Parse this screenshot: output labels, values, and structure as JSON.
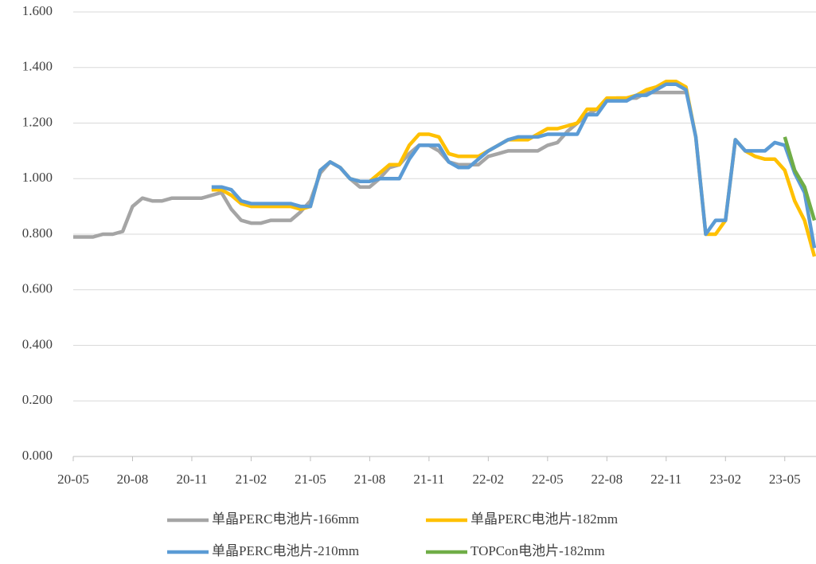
{
  "chart_data": {
    "type": "line",
    "categories": [
      "20-05",
      null,
      null,
      null,
      null,
      null,
      "20-08",
      null,
      null,
      null,
      null,
      null,
      "20-11",
      null,
      null,
      null,
      null,
      null,
      "21-02",
      null,
      null,
      null,
      null,
      null,
      "21-05",
      null,
      null,
      null,
      null,
      null,
      "21-08",
      null,
      null,
      null,
      null,
      null,
      "21-11",
      null,
      null,
      null,
      null,
      null,
      "22-02",
      null,
      null,
      null,
      null,
      null,
      "22-05",
      null,
      null,
      null,
      null,
      null,
      "22-08",
      null,
      null,
      null,
      null,
      null,
      "22-11",
      null,
      null,
      null,
      null,
      null,
      "23-02",
      null,
      null,
      null,
      null,
      null,
      "23-05",
      null,
      null,
      null
    ],
    "series": [
      {
        "name": "单晶PERC电池片-166mm",
        "color": "#a5a5a5",
        "values": [
          0.79,
          0.79,
          0.79,
          0.8,
          0.8,
          0.81,
          0.9,
          0.93,
          0.92,
          0.92,
          0.93,
          0.93,
          0.93,
          0.93,
          0.94,
          0.95,
          0.89,
          0.85,
          0.84,
          0.84,
          0.85,
          0.85,
          0.85,
          0.88,
          0.92,
          1.02,
          1.06,
          1.04,
          1.0,
          0.97,
          0.97,
          1.0,
          1.04,
          1.05,
          1.09,
          1.12,
          1.12,
          1.1,
          1.06,
          1.05,
          1.05,
          1.05,
          1.08,
          1.09,
          1.1,
          1.1,
          1.1,
          1.1,
          1.12,
          1.13,
          1.17,
          1.2,
          1.23,
          1.25,
          1.28,
          1.29,
          1.29,
          1.29,
          1.31,
          1.31,
          1.31,
          1.31,
          1.31,
          null,
          null,
          null,
          null,
          null,
          null,
          null,
          null,
          null,
          null,
          null,
          null,
          null
        ]
      },
      {
        "name": "单晶PERC电池片-182mm",
        "color": "#ffc000",
        "values": [
          null,
          null,
          null,
          null,
          null,
          null,
          null,
          null,
          null,
          null,
          null,
          null,
          null,
          null,
          0.96,
          0.96,
          0.94,
          0.91,
          0.9,
          0.9,
          0.9,
          0.9,
          0.9,
          0.89,
          0.9,
          1.03,
          1.06,
          1.04,
          1.0,
          0.99,
          0.99,
          1.02,
          1.05,
          1.05,
          1.12,
          1.16,
          1.16,
          1.15,
          1.09,
          1.08,
          1.08,
          1.08,
          1.1,
          1.12,
          1.14,
          1.14,
          1.14,
          1.16,
          1.18,
          1.18,
          1.19,
          1.2,
          1.25,
          1.25,
          1.29,
          1.29,
          1.29,
          1.3,
          1.32,
          1.33,
          1.35,
          1.35,
          1.33,
          1.15,
          0.8,
          0.8,
          0.85,
          1.14,
          1.1,
          1.08,
          1.07,
          1.07,
          1.03,
          0.92,
          0.85,
          0.72
        ]
      },
      {
        "name": "单晶PERC电池片-210mm",
        "color": "#5b9bd5",
        "values": [
          null,
          null,
          null,
          null,
          null,
          null,
          null,
          null,
          null,
          null,
          null,
          null,
          null,
          null,
          0.97,
          0.97,
          0.96,
          0.92,
          0.91,
          0.91,
          0.91,
          0.91,
          0.91,
          0.9,
          0.9,
          1.03,
          1.06,
          1.04,
          1.0,
          0.99,
          0.99,
          1.0,
          1.0,
          1.0,
          1.07,
          1.12,
          1.12,
          1.12,
          1.06,
          1.04,
          1.04,
          1.07,
          1.1,
          1.12,
          1.14,
          1.15,
          1.15,
          1.15,
          1.16,
          1.16,
          1.16,
          1.16,
          1.23,
          1.23,
          1.28,
          1.28,
          1.28,
          1.3,
          1.3,
          1.32,
          1.34,
          1.34,
          1.32,
          1.15,
          0.8,
          0.85,
          0.85,
          1.14,
          1.1,
          1.1,
          1.1,
          1.13,
          1.12,
          1.02,
          0.95,
          0.75
        ]
      },
      {
        "name": "TOPCon电池片-182mm",
        "color": "#70ad47",
        "values": [
          null,
          null,
          null,
          null,
          null,
          null,
          null,
          null,
          null,
          null,
          null,
          null,
          null,
          null,
          null,
          null,
          null,
          null,
          null,
          null,
          null,
          null,
          null,
          null,
          null,
          null,
          null,
          null,
          null,
          null,
          null,
          null,
          null,
          null,
          null,
          null,
          null,
          null,
          null,
          null,
          null,
          null,
          null,
          null,
          null,
          null,
          null,
          null,
          null,
          null,
          null,
          null,
          null,
          null,
          null,
          null,
          null,
          null,
          null,
          null,
          null,
          null,
          null,
          null,
          null,
          null,
          null,
          null,
          null,
          null,
          null,
          null,
          1.15,
          1.03,
          0.97,
          0.85
        ]
      }
    ],
    "ylim": [
      0,
      1.6
    ],
    "yticks": [
      {
        "value": 0,
        "label": "0.000"
      },
      {
        "value": 0.2,
        "label": "0.200"
      },
      {
        "value": 0.4,
        "label": "0.400"
      },
      {
        "value": 0.6,
        "label": "0.600"
      },
      {
        "value": 0.8,
        "label": "0.800"
      },
      {
        "value": 1.0,
        "label": "1.000"
      },
      {
        "value": 1.2,
        "label": "1.200"
      },
      {
        "value": 1.4,
        "label": "1.400"
      },
      {
        "value": 1.6,
        "label": "1.600"
      }
    ],
    "grid": true
  }
}
